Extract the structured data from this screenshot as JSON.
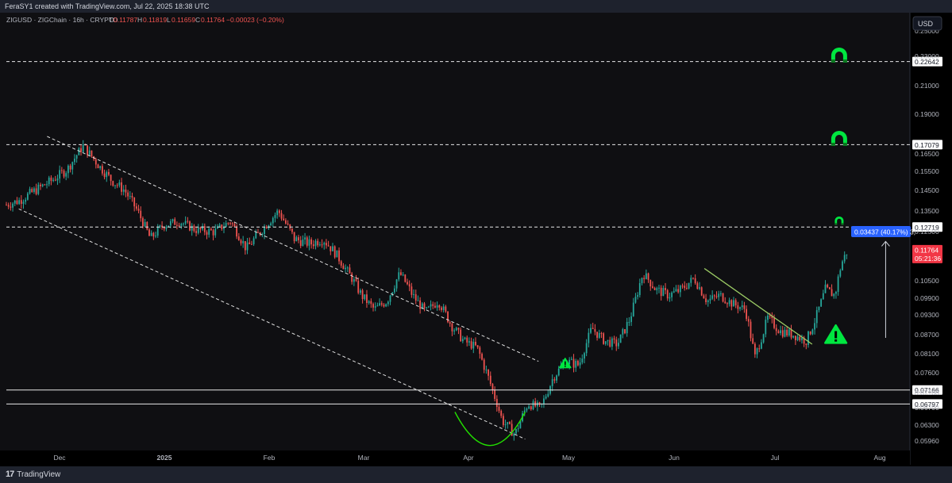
{
  "header": {
    "credit": "FeraSY1 created with TradingView.com, Jul 22, 2025 18:38 UTC"
  },
  "symbol_bar": {
    "symbol": "ZIGUSD · ZIGChain · 16h · CRYPTO",
    "open_label": "O",
    "open": "0.11787",
    "high_label": "H",
    "high": "0.11819",
    "low_label": "L",
    "low": "0.11659",
    "close_label": "C",
    "close": "0.11764",
    "change": "−0.00023 (−0.20%)"
  },
  "currency_button": "USD",
  "footer": {
    "brand": "TradingView",
    "brand_mark": "17"
  },
  "colors": {
    "background": "#0f0f12",
    "up": "#26a69a",
    "down": "#ef5350",
    "price_tag": "#f23645",
    "measure_tag": "#2962ff",
    "target": "#00e640",
    "trendline": "#9ccc65"
  },
  "chart_data": {
    "type": "candlestick",
    "title": "",
    "xlabel": "",
    "ylabel": "",
    "ylim": [
      0.0596,
      0.25
    ],
    "y_ticks": [
      "0.25000",
      "0.23000",
      "0.21000",
      "0.19000",
      "0.16500",
      "0.15500",
      "0.14500",
      "0.13500",
      "0.12500",
      "0.10500",
      "0.09900",
      "0.09300",
      "0.08700",
      "0.08100",
      "0.07600",
      "0.07100",
      "0.06700",
      "0.06300",
      "0.05960"
    ],
    "x_ticks": [
      "Dec",
      "2025",
      "Feb",
      "Mar",
      "Apr",
      "May",
      "Jun",
      "Jul",
      "Aug"
    ],
    "last_price": "0.11764",
    "countdown": "05:21:36",
    "horizontal_levels": [
      {
        "value": 0.22642,
        "label": "0.22642",
        "style": "dashed"
      },
      {
        "value": 0.17079,
        "label": "0.17079",
        "style": "dashed"
      },
      {
        "value": 0.12719,
        "label": "0.12719",
        "style": "dashed"
      },
      {
        "value": 0.07166,
        "label": "0.07166",
        "style": "solid"
      },
      {
        "value": 0.06797,
        "label": "0.06797",
        "style": "solid"
      }
    ],
    "measure": {
      "label": "0.03437 (40.17%) 3,",
      "from": 0.086,
      "to": 0.121
    },
    "channel_lines": [
      {
        "from": [
          "2024-11-24",
          0.176
        ],
        "to": [
          "2025-04-22",
          0.079
        ]
      },
      {
        "from": [
          "2024-11-08",
          0.136
        ],
        "to": [
          "2025-04-18",
          0.06
        ]
      }
    ],
    "trendline": {
      "from": [
        "2025-06-10",
        0.11
      ],
      "to": [
        "2025-07-12",
        0.084
      ]
    },
    "targets": [
      {
        "date": "2025-07-20",
        "value": 0.23,
        "size": "large"
      },
      {
        "date": "2025-07-20",
        "value": 0.174,
        "size": "large"
      },
      {
        "date": "2025-07-20",
        "value": 0.13,
        "size": "small"
      }
    ],
    "warnings": [
      {
        "date": "2025-04-30",
        "value": 0.0785,
        "size": "small"
      },
      {
        "date": "2025-07-19",
        "value": 0.087,
        "size": "large"
      }
    ],
    "rounding_bottom": {
      "from": [
        "2025-03-28",
        0.066
      ],
      "to": [
        "2025-04-18",
        0.066
      ],
      "low": 0.06
    },
    "price_path": [
      [
        "2024-11-01",
        0.138
      ],
      [
        "2024-11-05",
        0.14
      ],
      [
        "2024-11-10",
        0.145
      ],
      [
        "2024-11-15",
        0.15
      ],
      [
        "2024-11-20",
        0.156
      ],
      [
        "2024-11-25",
        0.17
      ],
      [
        "2024-11-30",
        0.158
      ],
      [
        "2024-12-04",
        0.15
      ],
      [
        "2024-12-08",
        0.145
      ],
      [
        "2024-12-12",
        0.135
      ],
      [
        "2024-12-16",
        0.122
      ],
      [
        "2024-12-20",
        0.128
      ],
      [
        "2024-12-25",
        0.13
      ],
      [
        "2024-12-30",
        0.126
      ],
      [
        "2025-01-05",
        0.125
      ],
      [
        "2025-01-10",
        0.13
      ],
      [
        "2025-01-15",
        0.118
      ],
      [
        "2025-01-20",
        0.126
      ],
      [
        "2025-01-25",
        0.135
      ],
      [
        "2025-01-30",
        0.122
      ],
      [
        "2025-02-04",
        0.12
      ],
      [
        "2025-02-08",
        0.122
      ],
      [
        "2025-02-12",
        0.116
      ],
      [
        "2025-02-16",
        0.108
      ],
      [
        "2025-02-20",
        0.1
      ],
      [
        "2025-02-24",
        0.095
      ],
      [
        "2025-02-28",
        0.098
      ],
      [
        "2025-03-04",
        0.108
      ],
      [
        "2025-03-08",
        0.1
      ],
      [
        "2025-03-12",
        0.094
      ],
      [
        "2025-03-16",
        0.098
      ],
      [
        "2025-03-20",
        0.09
      ],
      [
        "2025-03-24",
        0.085
      ],
      [
        "2025-03-28",
        0.083
      ],
      [
        "2025-04-01",
        0.074
      ],
      [
        "2025-04-05",
        0.064
      ],
      [
        "2025-04-09",
        0.061
      ],
      [
        "2025-04-13",
        0.068
      ],
      [
        "2025-04-17",
        0.067
      ],
      [
        "2025-04-21",
        0.075
      ],
      [
        "2025-04-25",
        0.079
      ],
      [
        "2025-04-29",
        0.078
      ],
      [
        "2025-05-03",
        0.089
      ],
      [
        "2025-05-07",
        0.085
      ],
      [
        "2025-05-11",
        0.084
      ],
      [
        "2025-05-15",
        0.092
      ],
      [
        "2025-05-19",
        0.108
      ],
      [
        "2025-05-23",
        0.102
      ],
      [
        "2025-05-27",
        0.1
      ],
      [
        "2025-05-31",
        0.102
      ],
      [
        "2025-06-04",
        0.106
      ],
      [
        "2025-06-08",
        0.098
      ],
      [
        "2025-06-12",
        0.1
      ],
      [
        "2025-06-16",
        0.097
      ],
      [
        "2025-06-20",
        0.095
      ],
      [
        "2025-06-23",
        0.08
      ],
      [
        "2025-06-27",
        0.092
      ],
      [
        "2025-07-01",
        0.088
      ],
      [
        "2025-07-05",
        0.087
      ],
      [
        "2025-07-09",
        0.085
      ],
      [
        "2025-07-12",
        0.092
      ],
      [
        "2025-07-15",
        0.102
      ],
      [
        "2025-07-18",
        0.1
      ],
      [
        "2025-07-20",
        0.112
      ],
      [
        "2025-07-22",
        0.1176
      ]
    ]
  }
}
